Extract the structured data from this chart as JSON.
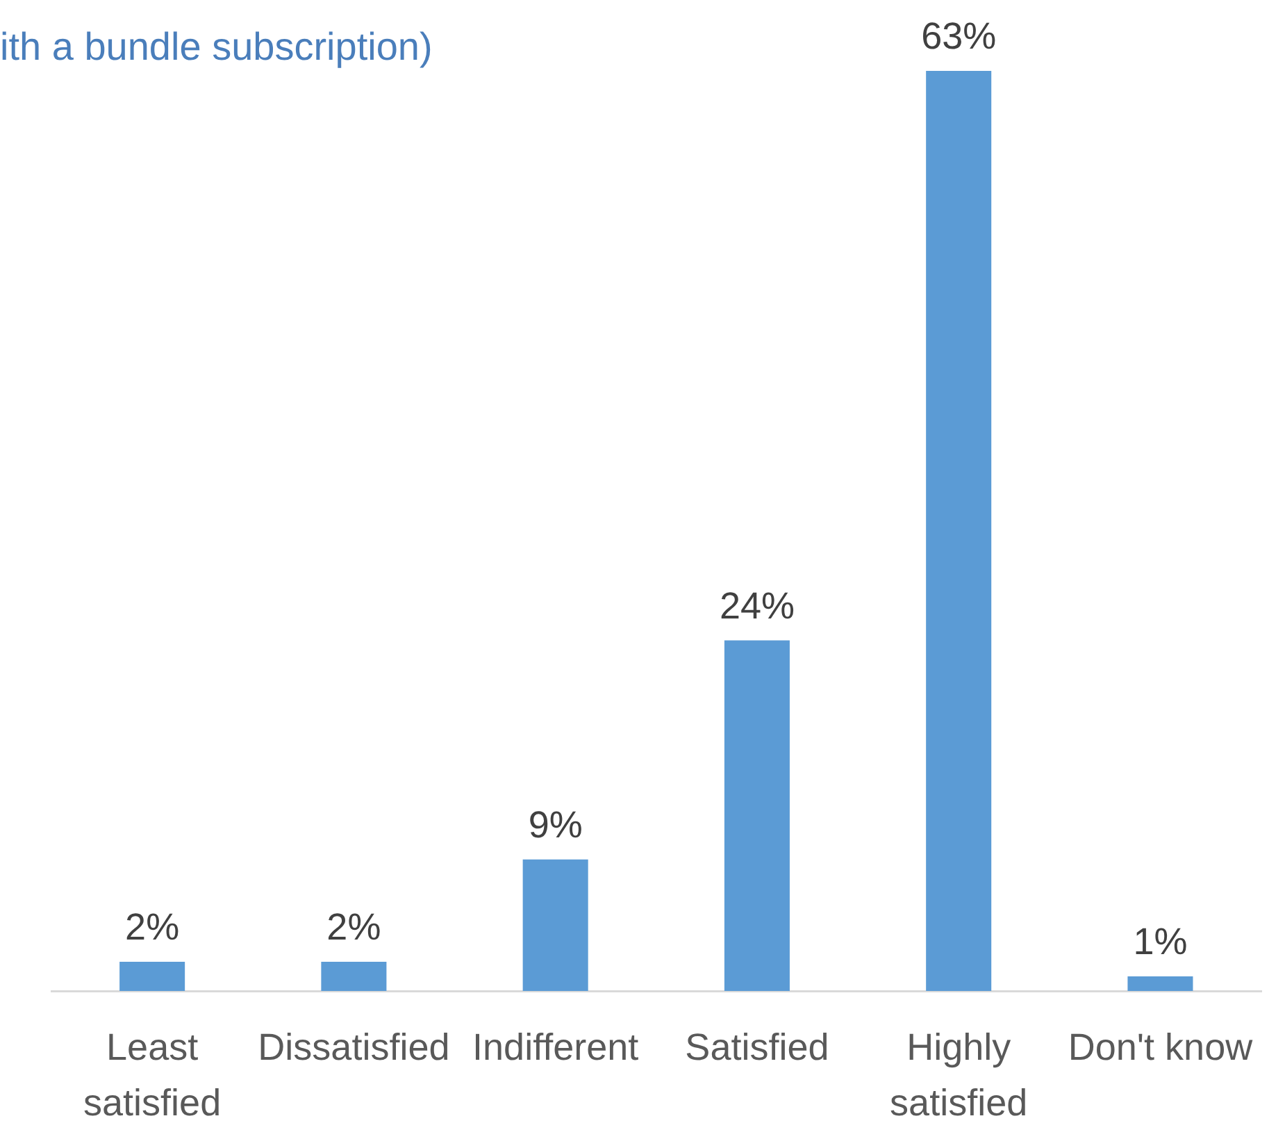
{
  "chart_data": {
    "type": "bar",
    "subtitle": "ith a bundle subscription)",
    "categories": [
      "Least satisfied",
      "Dissatisfied",
      "Indifferent",
      "Satisfied",
      "Highly satisfied",
      "Don't know"
    ],
    "values": [
      2,
      2,
      9,
      24,
      63,
      1
    ],
    "color": "#5b9bd5",
    "value_labels": [
      "2%",
      "2%",
      "9%",
      "24%",
      "63%",
      "1%"
    ]
  }
}
